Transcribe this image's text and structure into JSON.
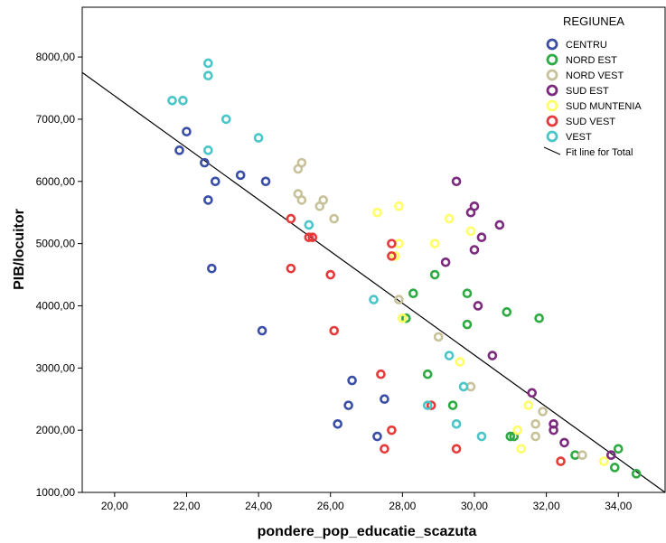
{
  "chart_data": {
    "type": "scatter",
    "title": "",
    "xlabel": "pondere_pop_educatie_scazuta",
    "ylabel": "PIB/locuitor",
    "xlim": [
      19.1,
      35.3
    ],
    "ylim": [
      1000,
      8800
    ],
    "x_ticks": [
      "20,00",
      "22,00",
      "24,00",
      "26,00",
      "28,00",
      "30,00",
      "32,00",
      "34,00"
    ],
    "y_ticks": [
      "1000,00",
      "2000,00",
      "3000,00",
      "4000,00",
      "5000,00",
      "6000,00",
      "7000,00",
      "8000,00"
    ],
    "grid": false,
    "legend": {
      "title": "REGIUNEA",
      "position": "top-right",
      "fit_label": "Fit line for Total"
    },
    "fit_line": {
      "x": [
        19.1,
        35.3
      ],
      "y": [
        7750,
        1000
      ]
    },
    "series": [
      {
        "name": "CENTRU",
        "color": "#3a4ea5",
        "points": [
          [
            21.8,
            6500
          ],
          [
            22.0,
            6800
          ],
          [
            22.5,
            6300
          ],
          [
            22.6,
            5700
          ],
          [
            22.7,
            4600
          ],
          [
            22.8,
            6000
          ],
          [
            23.5,
            6100
          ],
          [
            24.1,
            3600
          ],
          [
            24.2,
            6000
          ],
          [
            26.2,
            2100
          ],
          [
            26.5,
            2400
          ],
          [
            26.6,
            2800
          ],
          [
            27.3,
            1900
          ],
          [
            27.5,
            2500
          ]
        ]
      },
      {
        "name": "NORD EST",
        "color": "#2eaa43",
        "points": [
          [
            28.1,
            3800
          ],
          [
            28.3,
            4200
          ],
          [
            28.7,
            2900
          ],
          [
            28.9,
            4500
          ],
          [
            29.4,
            2400
          ],
          [
            29.8,
            3700
          ],
          [
            29.8,
            4200
          ],
          [
            30.9,
            3900
          ],
          [
            31.0,
            1900
          ],
          [
            31.1,
            1900
          ],
          [
            31.8,
            3800
          ],
          [
            32.8,
            1600
          ],
          [
            33.9,
            1400
          ],
          [
            34.0,
            1700
          ],
          [
            34.5,
            1300
          ]
        ]
      },
      {
        "name": "NORD VEST",
        "color": "#c8c29b",
        "points": [
          [
            25.1,
            5800
          ],
          [
            25.1,
            6200
          ],
          [
            25.2,
            6300
          ],
          [
            25.2,
            5700
          ],
          [
            25.7,
            5600
          ],
          [
            25.8,
            5700
          ],
          [
            26.1,
            5400
          ],
          [
            27.8,
            4800
          ],
          [
            27.9,
            4100
          ],
          [
            28.0,
            3800
          ],
          [
            29.0,
            3500
          ],
          [
            29.9,
            2700
          ],
          [
            31.7,
            1900
          ],
          [
            31.7,
            2100
          ],
          [
            31.9,
            2300
          ],
          [
            33.0,
            1600
          ]
        ]
      },
      {
        "name": "SUD EST",
        "color": "#7b2a7e",
        "points": [
          [
            29.2,
            4700
          ],
          [
            29.5,
            6000
          ],
          [
            29.9,
            5500
          ],
          [
            30.0,
            5600
          ],
          [
            30.0,
            4900
          ],
          [
            30.1,
            4000
          ],
          [
            30.2,
            5100
          ],
          [
            30.5,
            3200
          ],
          [
            30.7,
            5300
          ],
          [
            31.6,
            2600
          ],
          [
            32.2,
            2100
          ],
          [
            32.2,
            2000
          ],
          [
            32.5,
            1800
          ],
          [
            33.8,
            1600
          ]
        ]
      },
      {
        "name": "SUD MUNTENIA",
        "color": "#ffff66",
        "points": [
          [
            27.3,
            5500
          ],
          [
            27.8,
            4800
          ],
          [
            27.9,
            5000
          ],
          [
            27.9,
            5600
          ],
          [
            28.0,
            3800
          ],
          [
            28.9,
            5000
          ],
          [
            29.3,
            5400
          ],
          [
            29.6,
            3100
          ],
          [
            29.9,
            5200
          ],
          [
            31.2,
            2000
          ],
          [
            31.3,
            1700
          ],
          [
            31.5,
            2400
          ],
          [
            33.6,
            1500
          ]
        ]
      },
      {
        "name": "SUD VEST",
        "color": "#e63a3a",
        "points": [
          [
            24.9,
            5400
          ],
          [
            24.9,
            4600
          ],
          [
            25.4,
            5100
          ],
          [
            25.5,
            5100
          ],
          [
            26.0,
            4500
          ],
          [
            26.1,
            3600
          ],
          [
            27.4,
            2900
          ],
          [
            27.5,
            1700
          ],
          [
            27.7,
            5000
          ],
          [
            27.7,
            2000
          ],
          [
            27.7,
            4800
          ],
          [
            28.8,
            2400
          ],
          [
            29.5,
            1700
          ],
          [
            32.4,
            1500
          ]
        ]
      },
      {
        "name": "VEST",
        "color": "#4bc6c8",
        "points": [
          [
            21.6,
            7300
          ],
          [
            21.9,
            7300
          ],
          [
            22.6,
            7900
          ],
          [
            22.6,
            7700
          ],
          [
            22.6,
            6500
          ],
          [
            23.1,
            7000
          ],
          [
            24.0,
            6700
          ],
          [
            25.4,
            5300
          ],
          [
            27.2,
            4100
          ],
          [
            28.7,
            2400
          ],
          [
            29.3,
            3200
          ],
          [
            29.5,
            2100
          ],
          [
            29.7,
            2700
          ],
          [
            30.2,
            1900
          ]
        ]
      }
    ]
  }
}
